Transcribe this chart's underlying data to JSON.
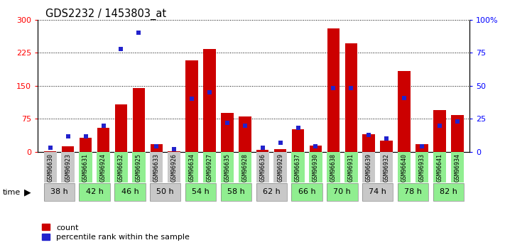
{
  "title": "GDS2232 / 1453803_at",
  "samples": [
    "GSM96630",
    "GSM96923",
    "GSM96631",
    "GSM96924",
    "GSM96632",
    "GSM96925",
    "GSM96633",
    "GSM96926",
    "GSM96634",
    "GSM96927",
    "GSM96635",
    "GSM96928",
    "GSM96636",
    "GSM96929",
    "GSM96637",
    "GSM96930",
    "GSM96638",
    "GSM96931",
    "GSM96639",
    "GSM96932",
    "GSM96640",
    "GSM96933",
    "GSM96641",
    "GSM96934"
  ],
  "time_groups": [
    {
      "label": "38 h",
      "indices": [
        0,
        1
      ],
      "color": "#c8c8c8"
    },
    {
      "label": "42 h",
      "indices": [
        2,
        3
      ],
      "color": "#90ee90"
    },
    {
      "label": "46 h",
      "indices": [
        4,
        5
      ],
      "color": "#90ee90"
    },
    {
      "label": "50 h",
      "indices": [
        6,
        7
      ],
      "color": "#c8c8c8"
    },
    {
      "label": "54 h",
      "indices": [
        8,
        9
      ],
      "color": "#90ee90"
    },
    {
      "label": "58 h",
      "indices": [
        10,
        11
      ],
      "color": "#90ee90"
    },
    {
      "label": "62 h",
      "indices": [
        12,
        13
      ],
      "color": "#c8c8c8"
    },
    {
      "label": "66 h",
      "indices": [
        14,
        15
      ],
      "color": "#90ee90"
    },
    {
      "label": "70 h",
      "indices": [
        16,
        17
      ],
      "color": "#90ee90"
    },
    {
      "label": "74 h",
      "indices": [
        18,
        19
      ],
      "color": "#c8c8c8"
    },
    {
      "label": "78 h",
      "indices": [
        20,
        21
      ],
      "color": "#90ee90"
    },
    {
      "label": "82 h",
      "indices": [
        22,
        23
      ],
      "color": "#90ee90"
    }
  ],
  "count_values": [
    2,
    12,
    32,
    55,
    108,
    145,
    18,
    2,
    208,
    233,
    88,
    80,
    5,
    7,
    52,
    14,
    280,
    246,
    40,
    26,
    183,
    18,
    95,
    83
  ],
  "percentile_values": [
    3,
    12,
    12,
    20,
    78,
    90,
    4,
    2,
    40,
    45,
    22,
    20,
    3,
    7,
    18,
    4,
    48,
    48,
    13,
    10,
    41,
    4,
    20,
    23
  ],
  "bar_color": "#cc0000",
  "pct_color": "#2222cc",
  "ylim_left": [
    0,
    300
  ],
  "ylim_right": [
    0,
    100
  ],
  "yticks_left": [
    0,
    75,
    150,
    225,
    300
  ],
  "yticks_right": [
    0,
    25,
    50,
    75,
    100
  ],
  "bar_width": 0.7,
  "pct_marker_size": 4.5,
  "legend_count_label": "count",
  "legend_pct_label": "percentile rank within the sample",
  "tick_label_fontsize": 6.0,
  "title_fontsize": 10.5
}
